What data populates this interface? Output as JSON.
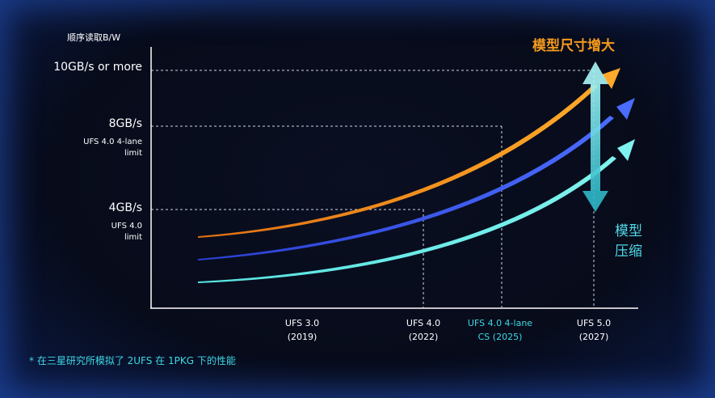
{
  "chart_data": {
    "type": "line",
    "ylabel": "顺序读取B/W",
    "y_ticks": [
      {
        "main": "10GB/s or more",
        "sub": []
      },
      {
        "main": "8GB/s",
        "sub": [
          "UFS 4.0 4-lane",
          "limit"
        ]
      },
      {
        "main": "4GB/s",
        "sub": [
          "UFS 4.0",
          "limit"
        ]
      }
    ],
    "x_ticks": [
      {
        "lines": [
          "UFS 3.0",
          "(2019)"
        ],
        "color": "#ffffff"
      },
      {
        "lines": [
          "UFS 4.0",
          "(2022)"
        ],
        "color": "#ffffff"
      },
      {
        "lines": [
          "UFS 4.0 4-lane",
          "CS (2025)"
        ],
        "color": "#3fd8e6"
      },
      {
        "lines": [
          "UFS 5.0",
          "(2027)"
        ],
        "color": "#ffffff"
      }
    ],
    "series": [
      {
        "color": "#f59a1e"
      },
      {
        "color": "#3d5cf2"
      },
      {
        "color": "#5ee6e8"
      }
    ],
    "annotations": {
      "up": "模型尺寸增大",
      "down": [
        "模型",
        "压缩"
      ]
    },
    "footnote": "* 在三星研究所模拟了 2UFS 在 1PKG 下的性能",
    "colors": {
      "axis": "#ffffff",
      "dashed": "#cfd6e6",
      "up_text": "#f59a1e",
      "down_text": "#4fd8e8",
      "footnote": "#3fd8e6"
    }
  }
}
